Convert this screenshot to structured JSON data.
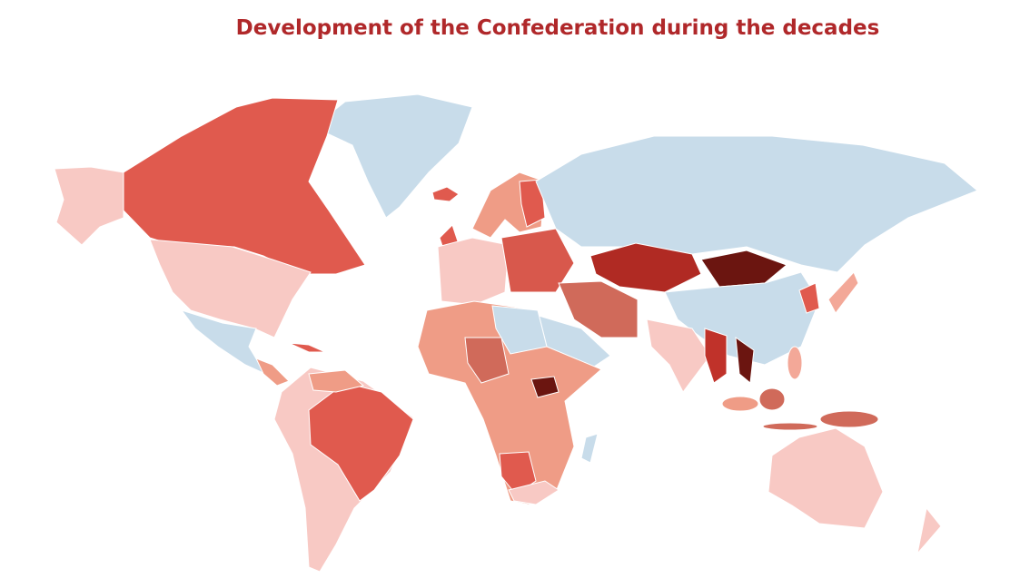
{
  "title": "Development of the Confederation during the decades"
}
